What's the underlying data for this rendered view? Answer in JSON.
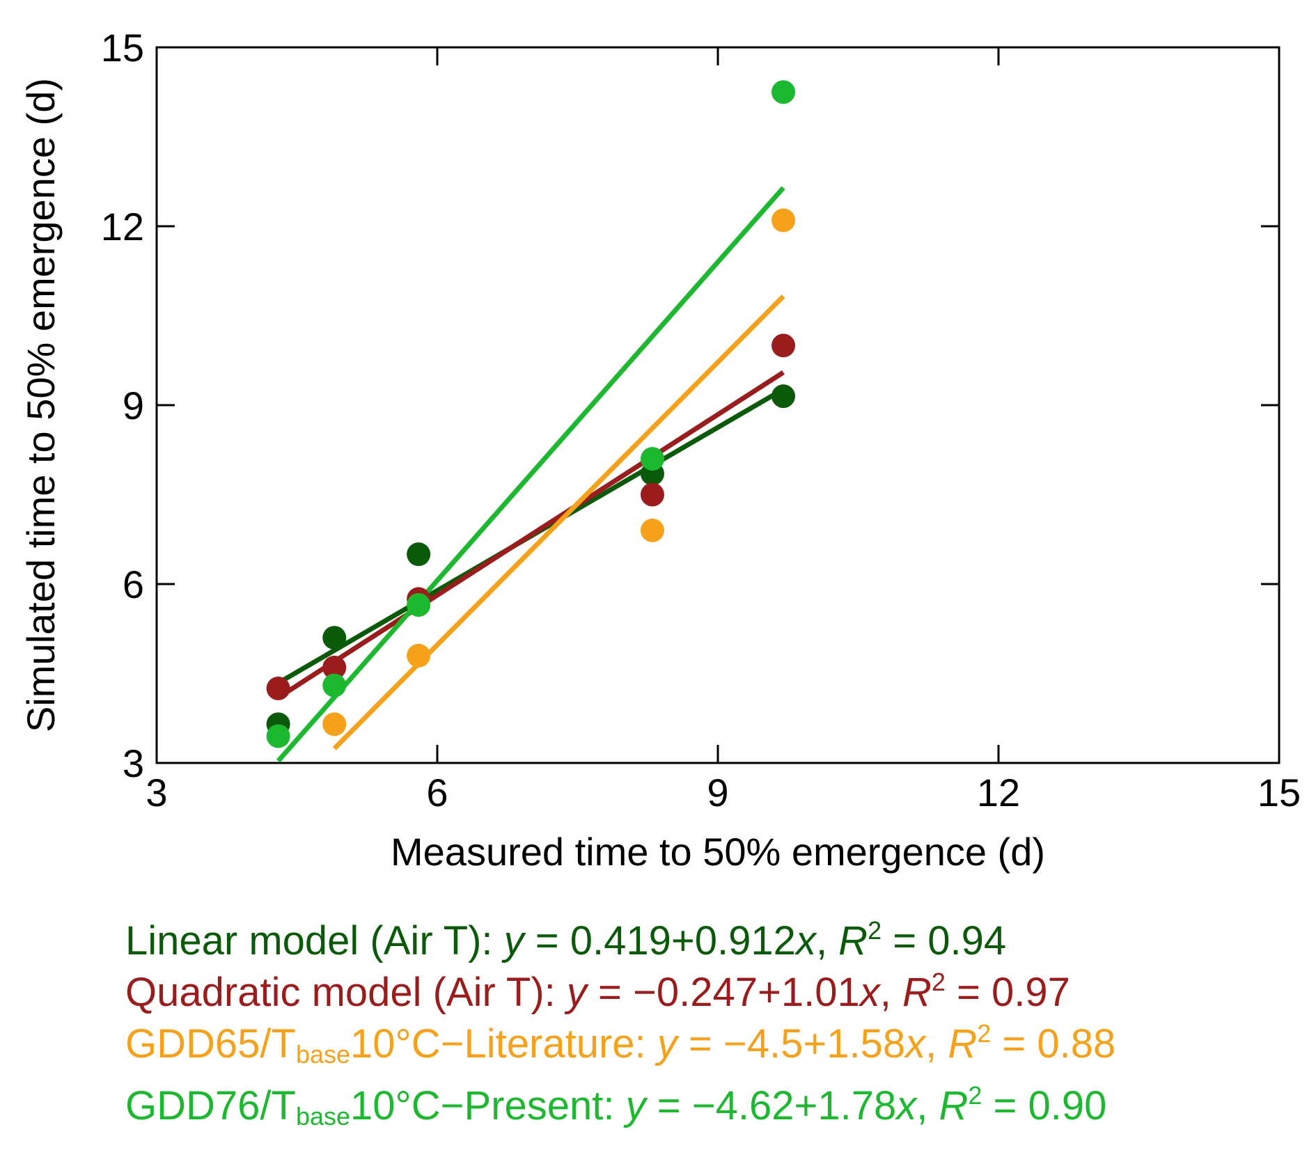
{
  "chart_data": {
    "type": "scatter",
    "xlabel": "Measured time to 50% emergence (d)",
    "ylabel": "Simulated time to 50% emergence (d)",
    "xlim": [
      3,
      15
    ],
    "ylim": [
      3,
      15
    ],
    "xticks": [
      "3",
      "6",
      "9",
      "12",
      "15"
    ],
    "yticks": [
      "3",
      "6",
      "9",
      "12",
      "15"
    ],
    "series": [
      {
        "name": "Linear model (Air T)",
        "color": "#0a5a0a",
        "x": [
          4.3,
          4.9,
          5.8,
          8.3,
          9.7
        ],
        "y": [
          3.65,
          5.1,
          6.5,
          7.85,
          9.15
        ],
        "fit": {
          "intercept": 0.419,
          "slope": 0.912,
          "x_range": [
            4.3,
            9.7
          ]
        },
        "legend": {
          "label": "Linear model (Air T): ",
          "y": "y",
          "eq": " = 0.419+0.912",
          "x": "x",
          "sep": ", ",
          "r": "R",
          "sup": "2",
          "r2": " = 0.94"
        }
      },
      {
        "name": "Quadratic model (Air T)",
        "color": "#9b1c1c",
        "x": [
          4.3,
          4.9,
          5.8,
          8.3,
          9.7
        ],
        "y": [
          4.25,
          4.6,
          5.75,
          7.5,
          10.0
        ],
        "fit": {
          "intercept": -0.247,
          "slope": 1.01,
          "x_range": [
            4.3,
            9.7
          ]
        },
        "legend": {
          "label": "Quadratic model (Air T): ",
          "y": "y",
          "eq": " = −0.247+1.01",
          "x": "x",
          "sep": ", ",
          "r": "R",
          "sup": "2",
          "r2": " = 0.97"
        }
      },
      {
        "name": "GDD65/Tbase10°C−Literature",
        "color": "#f5a21a",
        "x": [
          4.9,
          5.8,
          8.3,
          9.7
        ],
        "y": [
          3.65,
          4.8,
          6.9,
          12.1
        ],
        "fit": {
          "intercept": -4.5,
          "slope": 1.58,
          "x_range": [
            4.9,
            9.7
          ]
        },
        "legend": {
          "label_a": "GDD65/T",
          "sub": "base",
          "label_b": "10°C−Literature: ",
          "y": "y",
          "eq": " = −4.5+1.58",
          "x": "x",
          "sep": ", ",
          "r": "R",
          "sup": "2",
          "r2": " = 0.88"
        }
      },
      {
        "name": "GDD76/Tbase10°C−Present",
        "color": "#1cb830",
        "x": [
          4.3,
          4.9,
          5.8,
          8.3,
          9.7
        ],
        "y": [
          3.45,
          4.3,
          5.65,
          8.1,
          14.25
        ],
        "fit": {
          "intercept": -4.62,
          "slope": 1.78,
          "x_range": [
            4.3,
            9.7
          ]
        },
        "legend": {
          "label_a": "GDD76/T",
          "sub": "base",
          "label_b": "10°C−Present: ",
          "y": "y",
          "eq": " = −4.62+1.78",
          "x": "x",
          "sep": ", ",
          "r": "R",
          "sup": "2",
          "r2": " = 0.90"
        }
      }
    ]
  }
}
